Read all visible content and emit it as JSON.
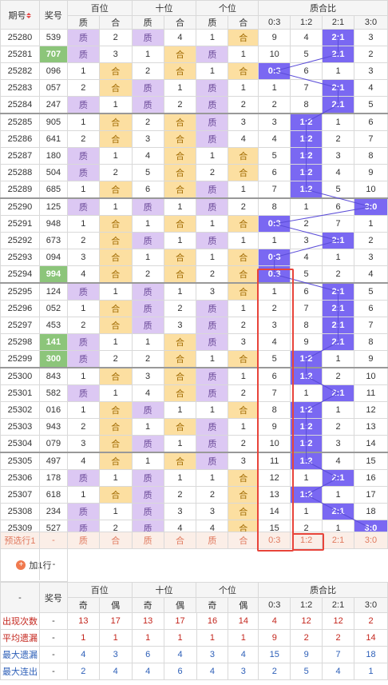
{
  "colors": {
    "zhi": "#dcc8f3",
    "he": "#fcdfa1",
    "green": "#8cc57a",
    "ratio": "#7a68f2",
    "highlight": "#e8443a",
    "prediction_bg": "#fbeee7"
  },
  "header": {
    "col_issue": "期号",
    "col_prize": "奖号",
    "groups": [
      "百位",
      "十位",
      "个位",
      "质合比"
    ],
    "sub": [
      "质",
      "合",
      "质",
      "合",
      "质",
      "合",
      "0:3",
      "1:2",
      "2:1",
      "3:0"
    ]
  },
  "rows": [
    {
      "issue": "25280",
      "prize": "539",
      "h": [
        "",
        "2"
      ],
      "t": [
        "",
        "4"
      ],
      "g": [
        "1",
        ""
      ],
      "r": [
        "9",
        "4",
        "2:1",
        "3"
      ]
    },
    {
      "issue": "25281",
      "prize": "707",
      "h": [
        "",
        "3"
      ],
      "t": [
        "1",
        ""
      ],
      "g": [
        "",
        "1"
      ],
      "r": [
        "10",
        "5",
        "2:1",
        "2"
      ]
    },
    {
      "issue": "25282",
      "prize": "096",
      "h": [
        "1",
        ""
      ],
      "t": [
        "2",
        ""
      ],
      "g": [
        "1",
        ""
      ],
      "r": [
        "0:3",
        "6",
        "1",
        "3"
      ]
    },
    {
      "issue": "25283",
      "prize": "057",
      "h": [
        "2",
        ""
      ],
      "t": [
        "",
        "1"
      ],
      "g": [
        "",
        "1"
      ],
      "r": [
        "1",
        "7",
        "2:1",
        "4"
      ]
    },
    {
      "issue": "25284",
      "prize": "247",
      "h": [
        "",
        "1"
      ],
      "t": [
        "",
        "2"
      ],
      "g": [
        "",
        "2"
      ],
      "r": [
        "2",
        "8",
        "2:1",
        "5"
      ]
    },
    {
      "issue": "25285",
      "prize": "905",
      "h": [
        "1",
        ""
      ],
      "t": [
        "2",
        ""
      ],
      "g": [
        "",
        "3"
      ],
      "r": [
        "3",
        "1:2",
        "1",
        "6"
      ]
    },
    {
      "issue": "25286",
      "prize": "641",
      "h": [
        "2",
        ""
      ],
      "t": [
        "3",
        ""
      ],
      "g": [
        "",
        "4"
      ],
      "r": [
        "4",
        "1:2",
        "2",
        "7"
      ]
    },
    {
      "issue": "25287",
      "prize": "180",
      "h": [
        "",
        "1"
      ],
      "t": [
        "4",
        ""
      ],
      "g": [
        "1",
        ""
      ],
      "r": [
        "5",
        "1:2",
        "3",
        "8"
      ]
    },
    {
      "issue": "25288",
      "prize": "504",
      "h": [
        "",
        "2"
      ],
      "t": [
        "5",
        ""
      ],
      "g": [
        "2",
        ""
      ],
      "r": [
        "6",
        "1:2",
        "4",
        "9"
      ]
    },
    {
      "issue": "25289",
      "prize": "685",
      "h": [
        "1",
        ""
      ],
      "t": [
        "6",
        ""
      ],
      "g": [
        "",
        "1"
      ],
      "r": [
        "7",
        "1:2",
        "5",
        "10"
      ]
    },
    {
      "issue": "25290",
      "prize": "125",
      "h": [
        "",
        "1"
      ],
      "t": [
        "",
        "1"
      ],
      "g": [
        "",
        "2"
      ],
      "r": [
        "8",
        "1",
        "6",
        "3:0"
      ]
    },
    {
      "issue": "25291",
      "prize": "948",
      "h": [
        "1",
        ""
      ],
      "t": [
        "1",
        ""
      ],
      "g": [
        "1",
        ""
      ],
      "r": [
        "0:3",
        "2",
        "7",
        "1"
      ]
    },
    {
      "issue": "25292",
      "prize": "673",
      "h": [
        "2",
        ""
      ],
      "t": [
        "",
        "1"
      ],
      "g": [
        "",
        "1"
      ],
      "r": [
        "1",
        "3",
        "2:1",
        "2"
      ]
    },
    {
      "issue": "25293",
      "prize": "094",
      "h": [
        "3",
        ""
      ],
      "t": [
        "1",
        ""
      ],
      "g": [
        "1",
        ""
      ],
      "r": [
        "0:3",
        "4",
        "1",
        "3"
      ]
    },
    {
      "issue": "25294",
      "prize": "994",
      "h": [
        "4",
        ""
      ],
      "t": [
        "2",
        ""
      ],
      "g": [
        "2",
        ""
      ],
      "r": [
        "0:3",
        "5",
        "2",
        "4"
      ]
    },
    {
      "issue": "25295",
      "prize": "124",
      "h": [
        "",
        "1"
      ],
      "t": [
        "",
        "1"
      ],
      "g": [
        "3",
        ""
      ],
      "r": [
        "1",
        "6",
        "2:1",
        "5"
      ]
    },
    {
      "issue": "25296",
      "prize": "052",
      "h": [
        "1",
        ""
      ],
      "t": [
        "",
        "2"
      ],
      "g": [
        "",
        "1"
      ],
      "r": [
        "2",
        "7",
        "2:1",
        "6"
      ]
    },
    {
      "issue": "25297",
      "prize": "453",
      "h": [
        "2",
        ""
      ],
      "t": [
        "",
        "3"
      ],
      "g": [
        "",
        "2"
      ],
      "r": [
        "3",
        "8",
        "2:1",
        "7"
      ]
    },
    {
      "issue": "25298",
      "prize": "141",
      "h": [
        "",
        "1"
      ],
      "t": [
        "1",
        ""
      ],
      "g": [
        "",
        "3"
      ],
      "r": [
        "4",
        "9",
        "2:1",
        "8"
      ]
    },
    {
      "issue": "25299",
      "prize": "300",
      "h": [
        "",
        "2"
      ],
      "t": [
        "2",
        ""
      ],
      "g": [
        "1",
        ""
      ],
      "r": [
        "5",
        "1:2",
        "1",
        "9"
      ]
    },
    {
      "issue": "25300",
      "prize": "843",
      "h": [
        "1",
        ""
      ],
      "t": [
        "3",
        ""
      ],
      "g": [
        "",
        "1"
      ],
      "r": [
        "6",
        "1:2",
        "2",
        "10"
      ]
    },
    {
      "issue": "25301",
      "prize": "582",
      "h": [
        "",
        "1"
      ],
      "t": [
        "4",
        ""
      ],
      "g": [
        "",
        "2"
      ],
      "r": [
        "7",
        "1",
        "2:1",
        "11"
      ]
    },
    {
      "issue": "25302",
      "prize": "016",
      "h": [
        "1",
        ""
      ],
      "t": [
        "",
        "1"
      ],
      "g": [
        "1",
        ""
      ],
      "r": [
        "8",
        "1:2",
        "1",
        "12"
      ]
    },
    {
      "issue": "25303",
      "prize": "943",
      "h": [
        "2",
        ""
      ],
      "t": [
        "1",
        ""
      ],
      "g": [
        "",
        "1"
      ],
      "r": [
        "9",
        "1:2",
        "2",
        "13"
      ]
    },
    {
      "issue": "25304",
      "prize": "079",
      "h": [
        "3",
        ""
      ],
      "t": [
        "",
        "1"
      ],
      "g": [
        "",
        "2"
      ],
      "r": [
        "10",
        "1:2",
        "3",
        "14"
      ]
    },
    {
      "issue": "25305",
      "prize": "497",
      "h": [
        "4",
        ""
      ],
      "t": [
        "1",
        ""
      ],
      "g": [
        "",
        "3"
      ],
      "r": [
        "11",
        "1:2",
        "4",
        "15"
      ]
    },
    {
      "issue": "25306",
      "prize": "178",
      "h": [
        "",
        "1"
      ],
      "t": [
        "",
        "1"
      ],
      "g": [
        "1",
        ""
      ],
      "r": [
        "12",
        "1",
        "2:1",
        "16"
      ]
    },
    {
      "issue": "25307",
      "prize": "618",
      "h": [
        "1",
        ""
      ],
      "t": [
        "",
        "2"
      ],
      "g": [
        "2",
        ""
      ],
      "r": [
        "13",
        "1:2",
        "1",
        "17"
      ]
    },
    {
      "issue": "25308",
      "prize": "234",
      "h": [
        "",
        "1"
      ],
      "t": [
        "",
        "3"
      ],
      "g": [
        "3",
        ""
      ],
      "r": [
        "14",
        "1",
        "2:1",
        "18"
      ]
    },
    {
      "issue": "25309",
      "prize": "527",
      "h": [
        "",
        "2"
      ],
      "t": [
        "",
        "4"
      ],
      "g": [
        "4",
        ""
      ],
      "r": [
        "15",
        "2",
        "1",
        "3:0"
      ]
    }
  ],
  "prediction": {
    "label": "预选行1",
    "prize": "-",
    "cells": [
      "质",
      "合",
      "质",
      "合",
      "质",
      "合",
      "0:3",
      "1:2",
      "2:1",
      "3:0"
    ]
  },
  "add_row": {
    "label": "加1行",
    "value": "-"
  },
  "stats_header": {
    "dash": "-",
    "col_prize": "奖号",
    "groups": [
      "百位",
      "十位",
      "个位",
      "质合比"
    ],
    "sub": [
      "奇",
      "偶",
      "奇",
      "偶",
      "奇",
      "偶",
      "0:3",
      "1:2",
      "2:1",
      "3:0"
    ]
  },
  "stats": [
    {
      "label": "出现次数",
      "prize": "-",
      "values": [
        "13",
        "17",
        "13",
        "17",
        "16",
        "14",
        "4",
        "12",
        "12",
        "2"
      ]
    },
    {
      "label": "平均遗漏",
      "prize": "-",
      "values": [
        "1",
        "1",
        "1",
        "1",
        "1",
        "1",
        "9",
        "2",
        "2",
        "14"
      ]
    },
    {
      "label": "最大遗漏",
      "prize": "-",
      "values": [
        "4",
        "3",
        "6",
        "4",
        "3",
        "4",
        "15",
        "9",
        "7",
        "18"
      ]
    },
    {
      "label": "最大连出",
      "prize": "-",
      "values": [
        "2",
        "4",
        "4",
        "6",
        "4",
        "3",
        "2",
        "5",
        "4",
        "1"
      ]
    }
  ]
}
